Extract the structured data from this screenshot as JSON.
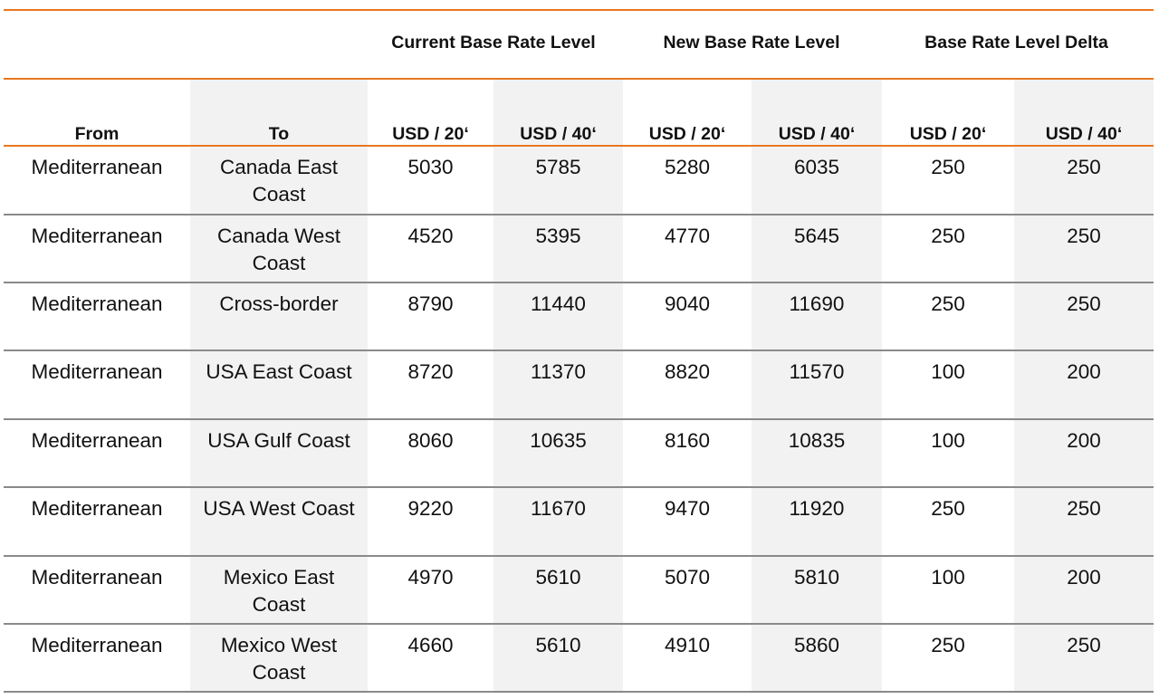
{
  "column_groups": [
    {
      "label": "Current Base Rate Level"
    },
    {
      "label": "New Base Rate Level"
    },
    {
      "label": "Base Rate Level Delta"
    }
  ],
  "columns": [
    "From",
    "To",
    "USD / 20‘",
    "USD / 40‘",
    "USD / 20‘",
    "USD / 40‘",
    "USD / 20‘",
    "USD / 40‘"
  ],
  "rows": [
    [
      "Mediterranean",
      "Canada East Coast",
      "5030",
      "5785",
      "5280",
      "6035",
      "250",
      "250"
    ],
    [
      "Mediterranean",
      "Canada West Coast",
      "4520",
      "5395",
      "4770",
      "5645",
      "250",
      "250"
    ],
    [
      "Mediterranean",
      "Cross-border",
      "8790",
      "11440",
      "9040",
      "11690",
      "250",
      "250"
    ],
    [
      "Mediterranean",
      "USA East Coast",
      "8720",
      "11370",
      "8820",
      "11570",
      "100",
      "200"
    ],
    [
      "Mediterranean",
      "USA Gulf Coast",
      "8060",
      "10635",
      "8160",
      "10835",
      "100",
      "200"
    ],
    [
      "Mediterranean",
      "USA West Coast",
      "9220",
      "11670",
      "9470",
      "11920",
      "250",
      "250"
    ],
    [
      "Mediterranean",
      "Mexico East Coast",
      "4970",
      "5610",
      "5070",
      "5810",
      "100",
      "200"
    ],
    [
      "Mediterranean",
      "Mexico West Coast",
      "4660",
      "5610",
      "4910",
      "5860",
      "250",
      "250"
    ]
  ],
  "colors": {
    "accent": "#e87722",
    "shade": "#f2f2f2",
    "rule": "#8a8a8a"
  }
}
